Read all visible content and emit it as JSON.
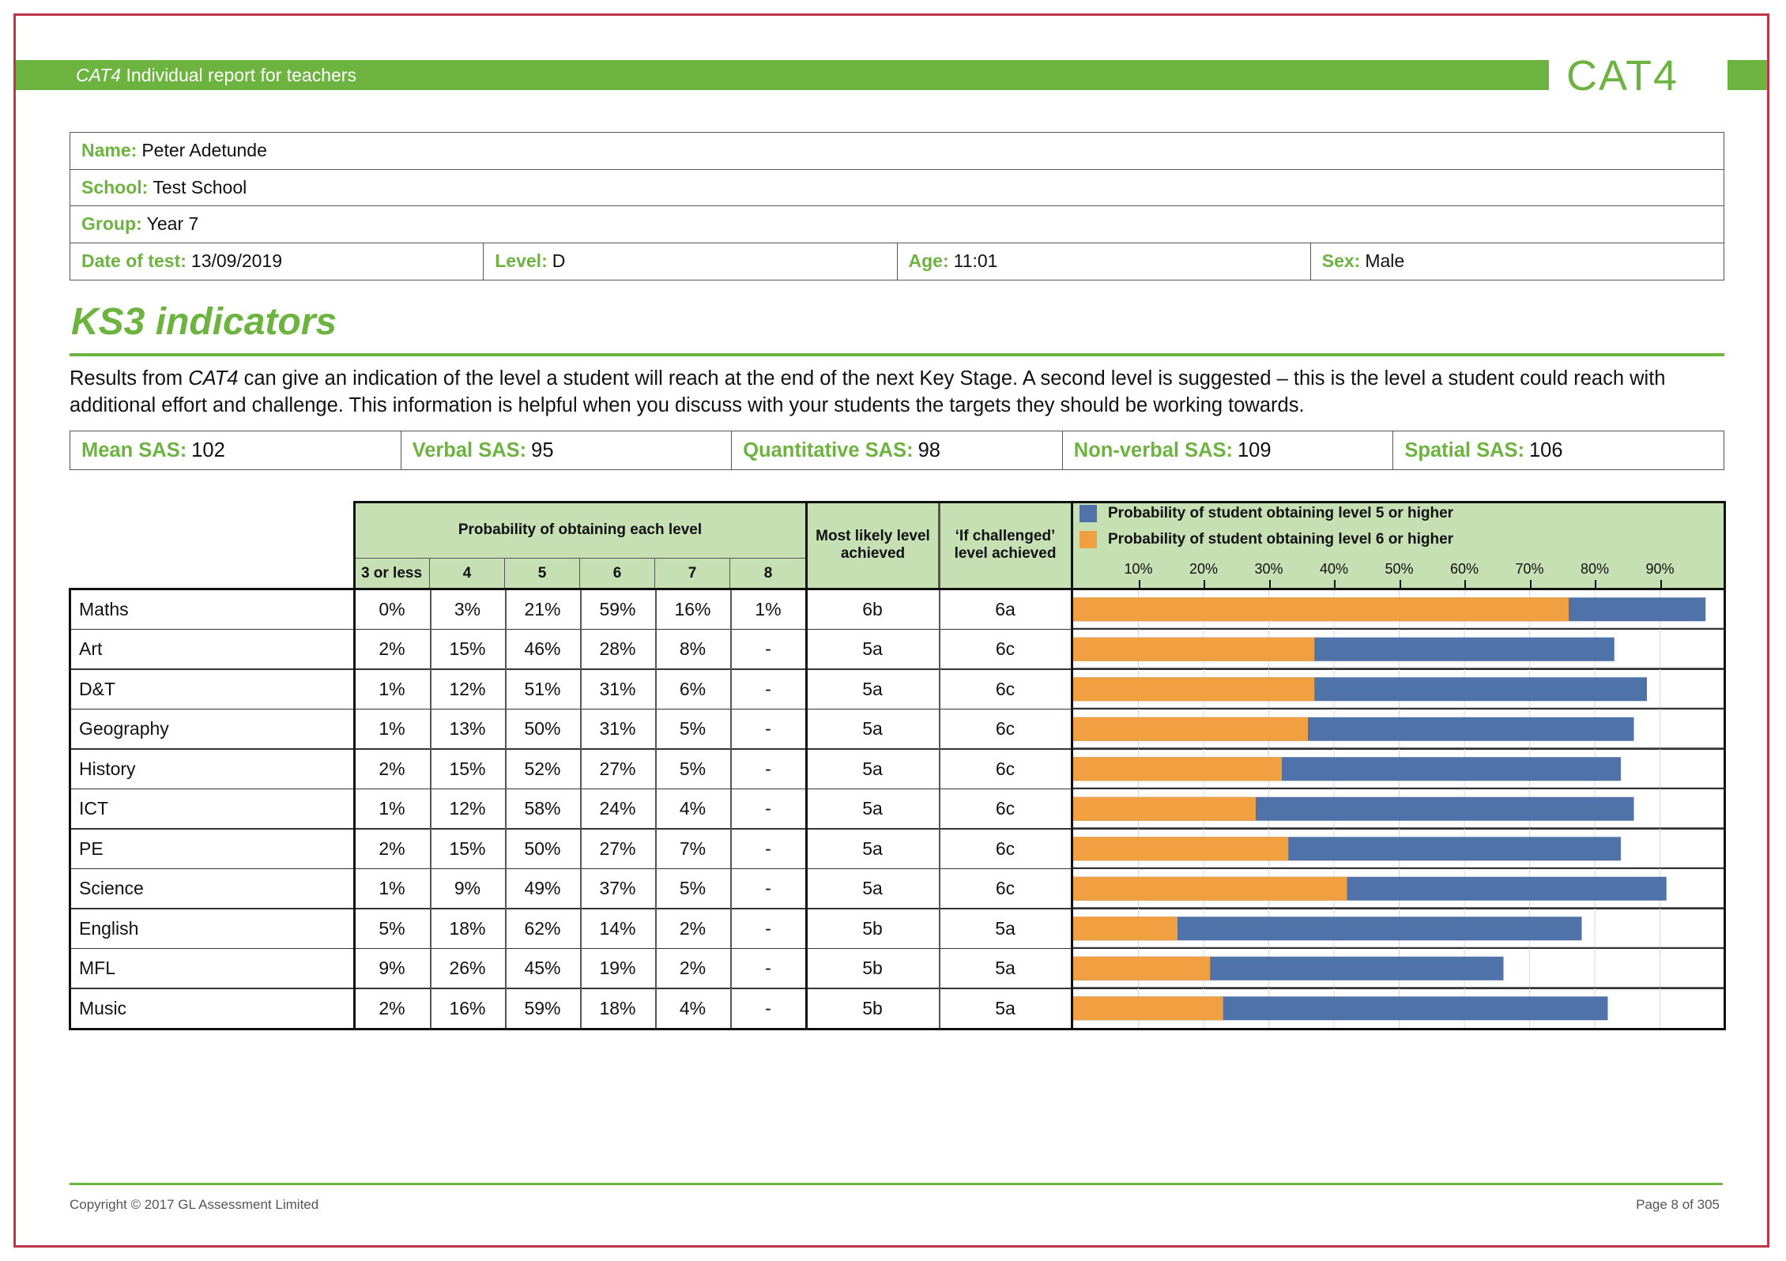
{
  "header": {
    "title_italic": "CAT4",
    "title_rest": " Individual report for teachers",
    "logo_text": "CAT4",
    "brand_green": "#6db33f"
  },
  "student": {
    "name_label": "Name:",
    "name": "Peter Adetunde",
    "school_label": "School:",
    "school": "Test School",
    "group_label": "Group:",
    "group": "Year 7",
    "date_label": "Date of test:",
    "date": "13/09/2019",
    "level_label": "Level:",
    "level": "D",
    "age_label": "Age:",
    "age": "11:01",
    "sex_label": "Sex:",
    "sex": "Male"
  },
  "section_title": "KS3 indicators",
  "intro": {
    "part1": "Results from ",
    "italic": "CAT4",
    "part2": " can give an indication of the level a student will reach at the end of the next Key Stage. A second level is suggested – this is the level a student could reach with additional effort and challenge. This information is helpful when you discuss with your students the targets they should be working towards."
  },
  "sas": [
    {
      "label": "Mean SAS:",
      "value": "102"
    },
    {
      "label": "Verbal SAS:",
      "value": "95"
    },
    {
      "label": "Quantitative SAS:",
      "value": "98"
    },
    {
      "label": "Non-verbal SAS:",
      "value": "109"
    },
    {
      "label": "Spatial SAS:",
      "value": "106"
    }
  ],
  "table": {
    "prob_header": "Probability of obtaining each level",
    "level_headers": [
      "3 or less",
      "4",
      "5",
      "6",
      "7",
      "8"
    ],
    "most_likely_header": "Most likely level achieved",
    "challenged_header": "‘If challenged’ level achieved",
    "rows": [
      {
        "subject": "Maths",
        "probs": [
          "0%",
          "3%",
          "21%",
          "59%",
          "16%",
          "1%"
        ],
        "most_likely": "6b",
        "challenged": "6a"
      },
      {
        "subject": "Art",
        "probs": [
          "2%",
          "15%",
          "46%",
          "28%",
          "8%",
          "-"
        ],
        "most_likely": "5a",
        "challenged": "6c"
      },
      {
        "subject": "D&T",
        "probs": [
          "1%",
          "12%",
          "51%",
          "31%",
          "6%",
          "-"
        ],
        "most_likely": "5a",
        "challenged": "6c"
      },
      {
        "subject": "Geography",
        "probs": [
          "1%",
          "13%",
          "50%",
          "31%",
          "5%",
          "-"
        ],
        "most_likely": "5a",
        "challenged": "6c"
      },
      {
        "subject": "History",
        "probs": [
          "2%",
          "15%",
          "52%",
          "27%",
          "5%",
          "-"
        ],
        "most_likely": "5a",
        "challenged": "6c"
      },
      {
        "subject": "ICT",
        "probs": [
          "1%",
          "12%",
          "58%",
          "24%",
          "4%",
          "-"
        ],
        "most_likely": "5a",
        "challenged": "6c"
      },
      {
        "subject": "PE",
        "probs": [
          "2%",
          "15%",
          "50%",
          "27%",
          "7%",
          "-"
        ],
        "most_likely": "5a",
        "challenged": "6c"
      },
      {
        "subject": "Science",
        "probs": [
          "1%",
          "9%",
          "49%",
          "37%",
          "5%",
          "-"
        ],
        "most_likely": "5a",
        "challenged": "6c"
      },
      {
        "subject": "English",
        "probs": [
          "5%",
          "18%",
          "62%",
          "14%",
          "2%",
          "-"
        ],
        "most_likely": "5b",
        "challenged": "5a"
      },
      {
        "subject": "MFL",
        "probs": [
          "9%",
          "26%",
          "45%",
          "19%",
          "2%",
          "-"
        ],
        "most_likely": "5b",
        "challenged": "5a"
      },
      {
        "subject": "Music",
        "probs": [
          "2%",
          "16%",
          "59%",
          "18%",
          "4%",
          "-"
        ],
        "most_likely": "5b",
        "challenged": "5a"
      }
    ]
  },
  "chart_data": {
    "type": "bar",
    "orientation": "horizontal",
    "categories": [
      "Maths",
      "Art",
      "D&T",
      "Geography",
      "History",
      "ICT",
      "PE",
      "Science",
      "English",
      "MFL",
      "Music"
    ],
    "series": [
      {
        "name": "Probability of student obtaining level 5 or higher",
        "color": "#4f72a8",
        "values": [
          97,
          83,
          88,
          86,
          84,
          86,
          84,
          91,
          78,
          66,
          82
        ]
      },
      {
        "name": "Probability of student obtaining level 6 or higher",
        "color": "#f0a040",
        "values": [
          76,
          37,
          37,
          36,
          32,
          28,
          33,
          42,
          16,
          21,
          23
        ]
      }
    ],
    "x_ticks": [
      "10%",
      "20%",
      "30%",
      "40%",
      "50%",
      "60%",
      "70%",
      "80%",
      "90%"
    ],
    "xlim": [
      0,
      100
    ],
    "grid": true,
    "legend": "top"
  },
  "footer": {
    "copyright": "Copyright © 2017  GL Assessment Limited",
    "page": "Page 8 of 305"
  }
}
